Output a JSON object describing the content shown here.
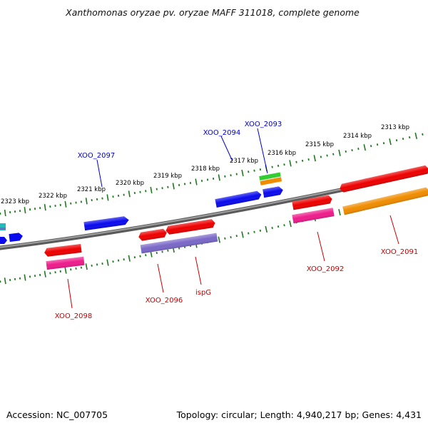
{
  "title": "Xanthomonas oryzae pv. oryzae MAFF 311018, complete genome",
  "footer": {
    "accession": "Accession: NC_007705",
    "summary": "Topology: circular; Length: 4,940,217 bp; Genes: 4,431"
  },
  "scale": {
    "unit": "kbp",
    "labels": [
      "2313 kbp",
      "2314 kbp",
      "2315 kbp",
      "2316 kbp",
      "2317 kbp",
      "2318 kbp",
      "2319 kbp",
      "2320 kbp",
      "2321 kbp",
      "2322 kbp",
      "2323 kbp"
    ]
  },
  "colors": {
    "backbone": "#808080",
    "tick": "#1f7a1f",
    "forward_label": "#0000cc",
    "reverse_label": "#cc0000",
    "blue": "#0a0aee",
    "red": "#ee0000",
    "magenta": "#ee1c8c",
    "orange": "#f08c00",
    "purple": "#7a68c8",
    "green": "#33cc33",
    "cyan": "#22bbbb"
  },
  "gene_labels": {
    "xoo_2093": "XOO_2093",
    "xoo_2094": "XOO_2094",
    "xoo_2097": "XOO_2097",
    "xoo_2091": "XOO_2091",
    "xoo_2092": "XOO_2092",
    "ispg": "ispG",
    "xoo_2096": "XOO_2096",
    "xoo_2098": "XOO_2098"
  }
}
